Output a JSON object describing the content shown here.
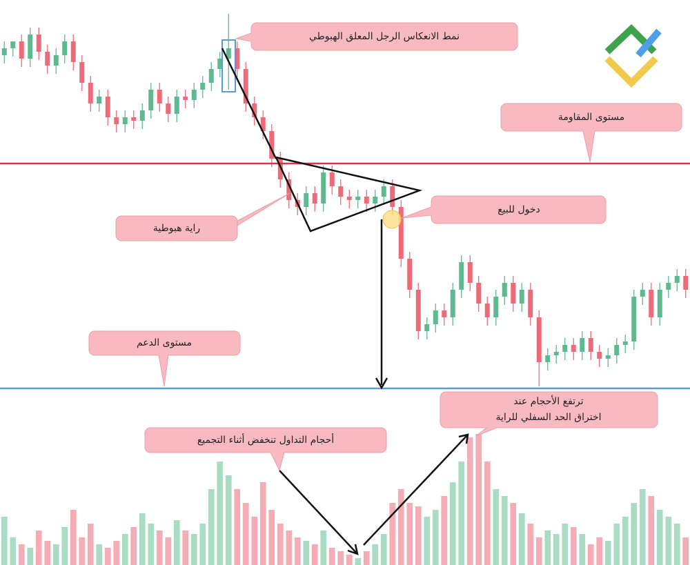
{
  "chart_data": {
    "type": "candlestick",
    "ylim": [
      0,
      600
    ],
    "volume_lim": [
      0,
      219
    ],
    "up_color": "#5db98f",
    "down_color": "#ec6b78",
    "volume_up_color": "#a9dcc3",
    "volume_down_color": "#f5adb5",
    "open": [
      520,
      530,
      540,
      515,
      550,
      525,
      505,
      520,
      540,
      510,
      480,
      450,
      460,
      430,
      420,
      430,
      425,
      440,
      470,
      450,
      435,
      460,
      455,
      470,
      480,
      500,
      515,
      530,
      500,
      450,
      430,
      410,
      370,
      340,
      310,
      300,
      320,
      305,
      350,
      330,
      315,
      310,
      315,
      305,
      315,
      330,
      300,
      225,
      180,
      120,
      130,
      150,
      140,
      180,
      220,
      190,
      160,
      140,
      170,
      190,
      160,
      180,
      140,
      75,
      85,
      90,
      100,
      90,
      110,
      90,
      80,
      85,
      100,
      105,
      170,
      180,
      140,
      180,
      190,
      200
    ],
    "high": [
      540,
      540,
      550,
      560,
      560,
      535,
      530,
      550,
      550,
      520,
      490,
      470,
      470,
      440,
      440,
      440,
      450,
      480,
      480,
      460,
      470,
      470,
      480,
      490,
      510,
      525,
      580,
      540,
      510,
      460,
      440,
      420,
      380,
      350,
      320,
      330,
      330,
      360,
      360,
      340,
      325,
      325,
      325,
      325,
      340,
      340,
      310,
      235,
      190,
      140,
      160,
      160,
      190,
      230,
      230,
      200,
      170,
      180,
      200,
      200,
      190,
      190,
      150,
      95,
      100,
      110,
      110,
      120,
      120,
      100,
      95,
      110,
      115,
      180,
      190,
      190,
      190,
      200,
      210,
      210
    ],
    "low": [
      508,
      518,
      503,
      503,
      513,
      493,
      493,
      508,
      498,
      468,
      438,
      438,
      418,
      408,
      408,
      413,
      413,
      428,
      438,
      423,
      423,
      443,
      443,
      458,
      468,
      488,
      470,
      488,
      438,
      418,
      398,
      358,
      328,
      298,
      288,
      288,
      293,
      293,
      318,
      303,
      298,
      298,
      293,
      293,
      303,
      288,
      213,
      168,
      108,
      108,
      118,
      128,
      128,
      168,
      178,
      148,
      128,
      128,
      158,
      148,
      148,
      128,
      40,
      63,
      73,
      78,
      78,
      78,
      78,
      68,
      68,
      73,
      88,
      93,
      158,
      128,
      128,
      168,
      178,
      168
    ],
    "close": [
      530,
      540,
      515,
      550,
      525,
      505,
      520,
      540,
      510,
      480,
      450,
      460,
      430,
      420,
      430,
      425,
      440,
      470,
      450,
      435,
      460,
      455,
      470,
      480,
      500,
      515,
      530,
      500,
      450,
      430,
      410,
      370,
      340,
      310,
      300,
      320,
      305,
      350,
      330,
      315,
      310,
      315,
      305,
      315,
      330,
      300,
      225,
      180,
      120,
      130,
      150,
      140,
      180,
      220,
      190,
      160,
      140,
      170,
      190,
      160,
      180,
      140,
      75,
      85,
      90,
      100,
      90,
      110,
      90,
      80,
      85,
      100,
      105,
      170,
      180,
      140,
      180,
      190,
      200,
      180
    ],
    "volume": [
      70,
      40,
      30,
      25,
      50,
      35,
      30,
      55,
      80,
      40,
      60,
      30,
      25,
      35,
      45,
      55,
      75,
      60,
      50,
      40,
      65,
      50,
      45,
      60,
      110,
      150,
      130,
      110,
      90,
      70,
      120,
      80,
      60,
      50,
      40,
      35,
      30,
      50,
      25,
      20,
      15,
      10,
      20,
      30,
      45,
      90,
      110,
      90,
      85,
      70,
      80,
      100,
      120,
      150,
      185,
      190,
      150,
      110,
      100,
      90,
      75,
      60,
      40,
      50,
      45,
      60,
      55,
      45,
      30,
      40,
      35,
      60,
      70,
      90,
      110,
      100,
      80,
      70,
      60,
      40
    ],
    "resistance": {
      "value": 363,
      "color": "#d9344c",
      "label": "مستوى المقاومة"
    },
    "support": {
      "value": 37,
      "color": "#5b9bd5",
      "label": "مستوى الدعم"
    },
    "annotations": {
      "hanging_man": "نمط الانعكاس الرجل المعلق الهبوطي",
      "pennant": "راية هبوطية",
      "entry": "دخول للبيع",
      "volume_rise": [
        "ترتفع الأحجام عند",
        "اختراق الحد السفلي للراية"
      ],
      "volume_fall": "أحجام التداول تنخفض أثناء التجميع"
    }
  }
}
